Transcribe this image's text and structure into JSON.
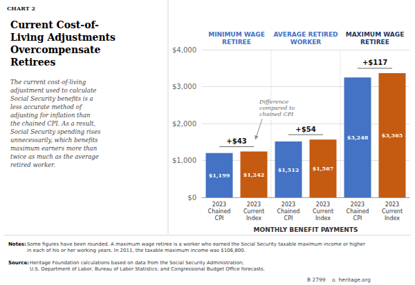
{
  "chart_data": {
    "type": "bar",
    "chart_label": "CHART 2",
    "title": "Current Cost-of-\nLiving Adjustments\nOvercompensate\nRetirees",
    "subtitle": "The current cost-of-living\nadjustment used to calculate\nSocial Security benefits is a\nless accurate method of\nadjusting for inflation than\nthe chained CPI. As a result,\nSocial Security spending rises\nunnecessarily, which benefits\nmaximum earners more than\ntwice as much as the average\nretired worker.",
    "xlabel": "MONTHLY BENEFIT PAYMENTS",
    "categories": [
      "2023\nChained\nCPI",
      "2023\nCurrent\nIndex",
      "2023\nChained\nCPI",
      "2023\nCurrent\nIndex",
      "2023\nChained\nCPI",
      "2023\nCurrent\nIndex"
    ],
    "values": [
      1199,
      1242,
      1512,
      1567,
      3248,
      3365
    ],
    "value_labels": [
      "$1,199",
      "$1,242",
      "$1,512",
      "$1,567",
      "$3,248",
      "$3,365"
    ],
    "colors": [
      "#4472c4",
      "#c55a11",
      "#4472c4",
      "#c55a11",
      "#4472c4",
      "#c55a11"
    ],
    "data_labels": true,
    "groups": [
      {
        "label": "MINIMUM WAGE\nRETIREE",
        "color": "#4472c4",
        "diff_label": "+$43",
        "annotation": "Difference\ncompared to\nchained CPI"
      },
      {
        "label": "AVERAGE RETIRED\nWORKER",
        "color": "#4472c4",
        "diff_label": "+$54"
      },
      {
        "label": "MAXIMUM WAGE\nRETIREE",
        "color": "#1f3864",
        "diff_label": "+$117"
      }
    ],
    "ylim": [
      0,
      4000
    ],
    "yticks": [
      {
        "value": 0,
        "label": "$0"
      },
      {
        "value": 1000,
        "label": "$1,000"
      },
      {
        "value": 2000,
        "label": "$2,000"
      },
      {
        "value": 3000,
        "label": "$3,000"
      },
      {
        "value": 4000,
        "label": "$4,000"
      }
    ],
    "grid": true,
    "footnotes": [
      {
        "head": "Notes:",
        "text": "Some figures have been rounded. A maximum wage retiree is a worker who earned the Social Security taxable maximum income or higher\nin each of his or her working years. In 2011, the taxable maximum income was $106,800."
      },
      {
        "head": "Source:",
        "text": "Heritage Foundation calculations based on data from the Social Security Administration;\nU.S. Department of Labor, Bureau of Labor Statistics; and Congressional Budget Office forecasts."
      }
    ],
    "credits": [
      "B 2799",
      "⌂  heritage.org"
    ]
  }
}
